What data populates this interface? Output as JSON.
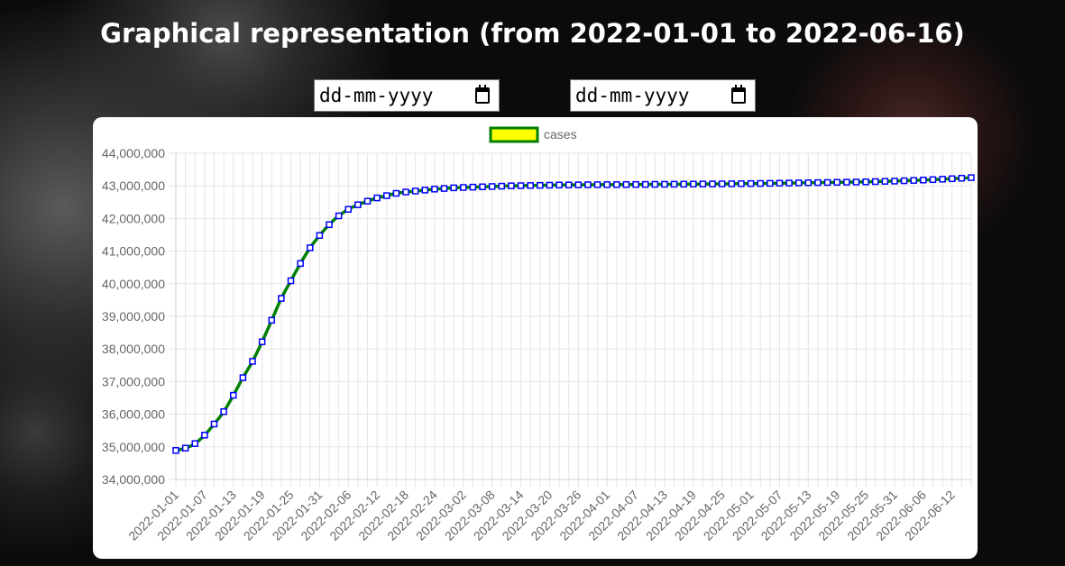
{
  "page": {
    "title": "Graphical representation (from 2022-01-01 to 2022-06-16)",
    "date_inputs": [
      {
        "placeholder": "dd-mm-yyyy",
        "value": ""
      },
      {
        "placeholder": "dd-mm-yyyy",
        "value": ""
      }
    ]
  },
  "colors": {
    "line": "#008000",
    "legend_fill": "#ffff00",
    "point_border": "#0000ff",
    "point_fill": "#ffffff",
    "grid": "#e6e6e6",
    "tick_text": "#666666"
  },
  "icons": [
    "calendar-icon",
    "calendar-icon"
  ],
  "chart_data": {
    "type": "line",
    "series": [
      {
        "name": "cases",
        "x": [
          "2022-01-01",
          "2022-01-03",
          "2022-01-05",
          "2022-01-07",
          "2022-01-09",
          "2022-01-11",
          "2022-01-13",
          "2022-01-15",
          "2022-01-17",
          "2022-01-19",
          "2022-01-21",
          "2022-01-23",
          "2022-01-25",
          "2022-01-27",
          "2022-01-29",
          "2022-01-31",
          "2022-02-02",
          "2022-02-04",
          "2022-02-06",
          "2022-02-08",
          "2022-02-10",
          "2022-02-12",
          "2022-02-14",
          "2022-02-16",
          "2022-02-18",
          "2022-02-20",
          "2022-02-22",
          "2022-02-24",
          "2022-02-26",
          "2022-02-28",
          "2022-03-02",
          "2022-03-04",
          "2022-03-06",
          "2022-03-08",
          "2022-03-10",
          "2022-03-12",
          "2022-03-14",
          "2022-03-16",
          "2022-03-18",
          "2022-03-20",
          "2022-03-22",
          "2022-03-24",
          "2022-03-26",
          "2022-03-28",
          "2022-03-30",
          "2022-04-01",
          "2022-04-03",
          "2022-04-05",
          "2022-04-07",
          "2022-04-09",
          "2022-04-11",
          "2022-04-13",
          "2022-04-15",
          "2022-04-17",
          "2022-04-19",
          "2022-04-21",
          "2022-04-23",
          "2022-04-25",
          "2022-04-27",
          "2022-04-29",
          "2022-05-01",
          "2022-05-03",
          "2022-05-05",
          "2022-05-07",
          "2022-05-09",
          "2022-05-11",
          "2022-05-13",
          "2022-05-15",
          "2022-05-17",
          "2022-05-19",
          "2022-05-21",
          "2022-05-23",
          "2022-05-25",
          "2022-05-27",
          "2022-05-29",
          "2022-05-31",
          "2022-06-02",
          "2022-06-04",
          "2022-06-06",
          "2022-06-08",
          "2022-06-10",
          "2022-06-12",
          "2022-06-14",
          "2022-06-16"
        ],
        "y": [
          34890000,
          34960000,
          35100000,
          35360000,
          35700000,
          36080000,
          36580000,
          37120000,
          37620000,
          38220000,
          38880000,
          39550000,
          40090000,
          40620000,
          41100000,
          41480000,
          41810000,
          42080000,
          42280000,
          42420000,
          42530000,
          42630000,
          42700000,
          42770000,
          42810000,
          42840000,
          42870000,
          42900000,
          42920000,
          42940000,
          42950000,
          42960000,
          42970000,
          42980000,
          42990000,
          43000000,
          43005000,
          43010000,
          43015000,
          43020000,
          43025000,
          43028000,
          43030000,
          43033000,
          43035000,
          43037000,
          43038000,
          43040000,
          43042000,
          43044000,
          43046000,
          43048000,
          43050000,
          43052000,
          43054000,
          43056000,
          43058000,
          43060000,
          43063000,
          43066000,
          43070000,
          43073000,
          43077000,
          43081000,
          43085000,
          43090000,
          43094000,
          43099000,
          43103000,
          43108000,
          43113000,
          43118000,
          43123000,
          43130000,
          43138000,
          43146000,
          43156000,
          43166000,
          43178000,
          43190000,
          43204000,
          43218000,
          43234000,
          43252000
        ]
      }
    ],
    "x_tick_labels": [
      "2022-01-01",
      "2022-01-07",
      "2022-01-13",
      "2022-01-19",
      "2022-01-25",
      "2022-01-31",
      "2022-02-06",
      "2022-02-12",
      "2022-02-18",
      "2022-02-24",
      "2022-03-02",
      "2022-03-08",
      "2022-03-14",
      "2022-03-20",
      "2022-03-26",
      "2022-04-01",
      "2022-04-07",
      "2022-04-13",
      "2022-04-19",
      "2022-04-25",
      "2022-05-01",
      "2022-05-07",
      "2022-05-13",
      "2022-05-19",
      "2022-05-25",
      "2022-05-31",
      "2022-06-06",
      "2022-06-12"
    ],
    "y_tick_labels": [
      "44,000,000",
      "43,000,000",
      "42,000,000",
      "41,000,000",
      "40,000,000",
      "39,000,000",
      "38,000,000",
      "37,000,000",
      "36,000,000",
      "35,000,000",
      "34,000,000"
    ],
    "ylim": [
      34000000,
      44000000
    ],
    "xlim": [
      "2022-01-01",
      "2022-06-16"
    ],
    "grid": true,
    "legend_position": "top"
  }
}
